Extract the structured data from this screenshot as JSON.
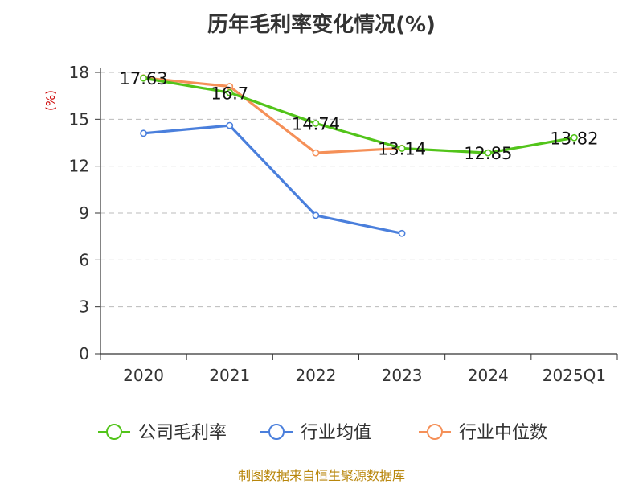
{
  "chart_data": {
    "type": "line",
    "title": "历年毛利率变化情况(%)",
    "ylabel": "(%)",
    "xlabel": "",
    "categories": [
      "2020",
      "2021",
      "2022",
      "2023",
      "2024",
      "2025Q1"
    ],
    "ylim": [
      0,
      18
    ],
    "yticks": [
      0,
      3,
      6,
      9,
      12,
      15,
      18
    ],
    "grid": true,
    "legend_position": "bottom",
    "series": [
      {
        "name": "公司毛利率",
        "color": "#52c41a",
        "values": [
          17.63,
          16.7,
          14.74,
          13.14,
          12.85,
          13.82
        ],
        "labels": [
          "17.63",
          "16.7",
          "14.74",
          "13.14",
          "12.85",
          "13.82"
        ]
      },
      {
        "name": "行业均值",
        "color": "#4a7fdc",
        "values": [
          14.1,
          14.6,
          8.85,
          7.7,
          null,
          null
        ]
      },
      {
        "name": "行业中位数",
        "color": "#f59058",
        "values": [
          17.65,
          17.1,
          12.85,
          13.15,
          null,
          null
        ]
      }
    ]
  },
  "footer": "制图数据来自恒生聚源数据库"
}
